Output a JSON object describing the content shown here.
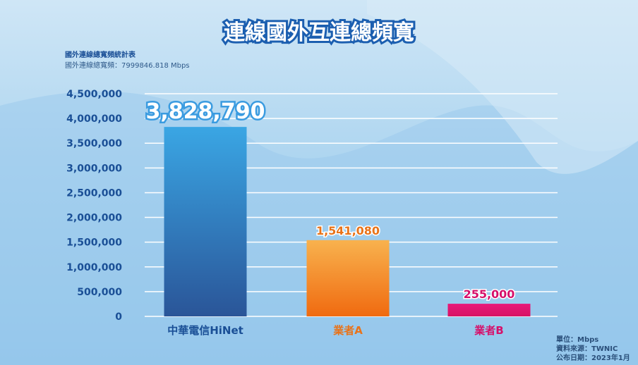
{
  "chart_data": {
    "type": "bar",
    "title": "連線國外互連總頻寬",
    "subtitle": "國外連線總寬頻統計表",
    "total_line": "國外連線總寬頻：7999846.818 Mbps",
    "categories": [
      "中華電信HiNet",
      "業者A",
      "業者B"
    ],
    "values": [
      3828790,
      1541080,
      255000
    ],
    "value_labels": [
      "3,828,790",
      "1,541,080",
      "255,000"
    ],
    "colors": [
      "#2a78c4",
      "#f39a22",
      "#e0186f"
    ],
    "label_colors": [
      "#1a4f96",
      "#e8731a",
      "#d6106a"
    ],
    "yticks": [
      "0",
      "500,000",
      "1,000,000",
      "1,500,000",
      "2,000,000",
      "2,500,000",
      "3,000,000",
      "3,500,000",
      "4,000,000",
      "4,500,000"
    ],
    "ylim": [
      0,
      4500000
    ],
    "grid": true,
    "xlabel": "",
    "ylabel": ""
  },
  "footer": {
    "unit": "單位：Mbps",
    "source": "資料來源：TWNIC",
    "date": "公布日期：2023年1月"
  }
}
